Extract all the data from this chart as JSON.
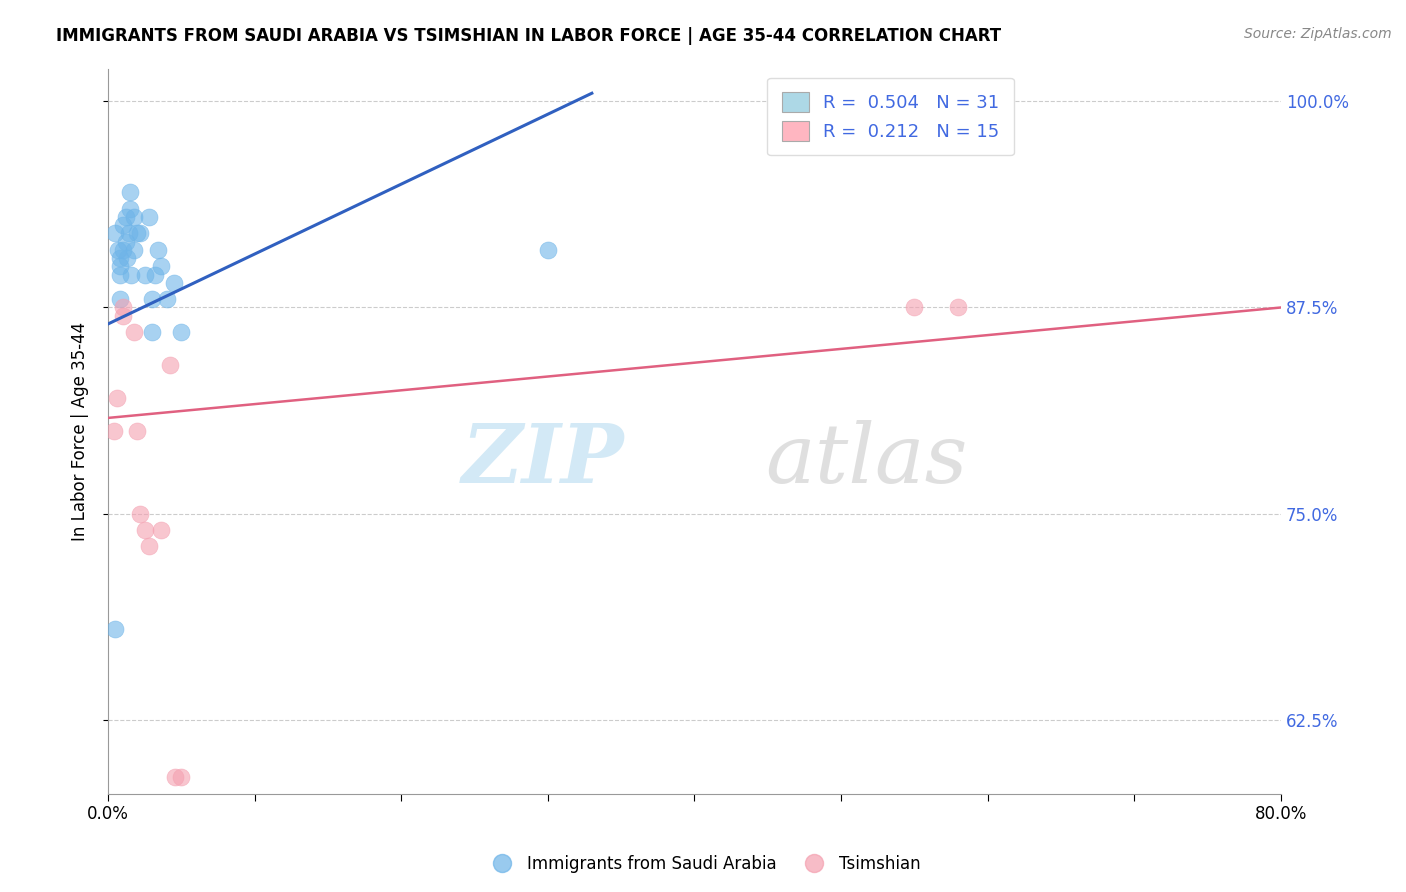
{
  "title": "IMMIGRANTS FROM SAUDI ARABIA VS TSIMSHIAN IN LABOR FORCE | AGE 35-44 CORRELATION CHART",
  "source_text": "Source: ZipAtlas.com",
  "ylabel": "In Labor Force | Age 35-44",
  "xlim": [
    0.0,
    0.8
  ],
  "ylim": [
    0.58,
    1.02
  ],
  "ytick_labels": [
    "62.5%",
    "75.0%",
    "87.5%",
    "100.0%"
  ],
  "ytick_values": [
    0.625,
    0.75,
    0.875,
    1.0
  ],
  "xtick_values": [
    0.0,
    0.1,
    0.2,
    0.3,
    0.4,
    0.5,
    0.6,
    0.7,
    0.8
  ],
  "legend1_R": "0.504",
  "legend1_N": "31",
  "legend2_R": "0.212",
  "legend2_N": "15",
  "blue_color": "#6EB4E8",
  "pink_color": "#F4A0B0",
  "blue_line_color": "#3060C0",
  "pink_line_color": "#E06080",
  "blue_scatter_x": [
    0.005,
    0.008,
    0.008,
    0.01,
    0.01,
    0.012,
    0.012,
    0.013,
    0.014,
    0.015,
    0.015,
    0.016,
    0.018,
    0.018,
    0.02,
    0.022,
    0.025,
    0.028,
    0.03,
    0.03,
    0.032,
    0.034,
    0.036,
    0.04,
    0.045,
    0.05,
    0.005,
    0.007,
    0.008,
    0.008,
    0.3
  ],
  "blue_scatter_y": [
    0.68,
    0.895,
    0.905,
    0.91,
    0.925,
    0.915,
    0.93,
    0.905,
    0.92,
    0.935,
    0.945,
    0.895,
    0.91,
    0.93,
    0.92,
    0.92,
    0.895,
    0.93,
    0.86,
    0.88,
    0.895,
    0.91,
    0.9,
    0.88,
    0.89,
    0.86,
    0.92,
    0.91,
    0.88,
    0.9,
    0.91
  ],
  "pink_scatter_x": [
    0.004,
    0.006,
    0.01,
    0.01,
    0.018,
    0.02,
    0.022,
    0.025,
    0.028,
    0.036,
    0.042,
    0.55,
    0.58,
    0.046,
    0.05
  ],
  "pink_scatter_y": [
    0.8,
    0.82,
    0.87,
    0.875,
    0.86,
    0.8,
    0.75,
    0.74,
    0.73,
    0.74,
    0.84,
    0.875,
    0.875,
    0.59,
    0.59
  ],
  "blue_line_x": [
    0.0,
    0.33
  ],
  "blue_line_y": [
    0.865,
    1.005
  ],
  "pink_line_x": [
    0.0,
    0.8
  ],
  "pink_line_y": [
    0.808,
    0.875
  ],
  "legend_box_blue": "#ADD8E6",
  "legend_box_pink": "#FFB6C1",
  "watermark_zip_color": "#C8E4F4",
  "watermark_atlas_color": "#D8D8D8",
  "right_tick_color": "#4169E1",
  "grid_color": "#CCCCCC"
}
